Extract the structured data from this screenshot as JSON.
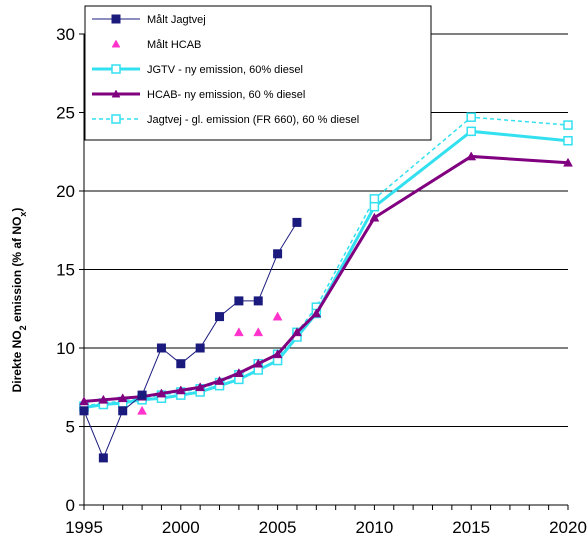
{
  "chart_data": {
    "type": "line",
    "title": "",
    "xlabel": "",
    "ylabel": {
      "prefix": "Direkte NO",
      "sub": "2",
      "middle": " emission  (% af NO",
      "sub2": "x",
      "suffix": ")"
    },
    "xlim": [
      1995,
      2020
    ],
    "ylim": [
      0,
      30
    ],
    "xticks": [
      "1995",
      "2000",
      "2005",
      "2010",
      "2015",
      "2020"
    ],
    "yticks": [
      "0",
      "5",
      "10",
      "15",
      "20",
      "25",
      "30"
    ],
    "grid": "horizontal",
    "legend_position": "top-left",
    "series": [
      {
        "name": "Målt Jagtvej",
        "color": "#1b1b7e",
        "marker": "square-filled",
        "line": "solid-thin",
        "x": [
          1995,
          1996,
          1997,
          1998,
          1999,
          2000,
          2001,
          2002,
          2003,
          2004,
          2005,
          2006
        ],
        "y": [
          6,
          3,
          6,
          7,
          10,
          9,
          10,
          12,
          13,
          13,
          16,
          18
        ]
      },
      {
        "name": "Målt HCAB",
        "color": "#ff33cc",
        "marker": "triangle-filled",
        "line": "none",
        "x": [
          1998,
          2003,
          2004,
          2005
        ],
        "y": [
          6,
          11,
          11,
          12
        ]
      },
      {
        "name": "JGTV - ny emission, 60% diesel",
        "color": "#33e0f0",
        "marker": "square-open",
        "line": "solid-thick",
        "x": [
          1995,
          1996,
          1997,
          1998,
          1999,
          2000,
          2001,
          2002,
          2003,
          2004,
          2005,
          2006,
          2007,
          2010,
          2015,
          2020
        ],
        "y": [
          6.2,
          6.4,
          6.5,
          6.7,
          6.8,
          7.0,
          7.2,
          7.6,
          8.0,
          8.6,
          9.2,
          10.7,
          12.2,
          19.0,
          23.8,
          23.2
        ]
      },
      {
        "name": "HCAB- ny emission, 60 % diesel",
        "color": "#800080",
        "marker": "triangle-filled",
        "line": "solid-thick",
        "x": [
          1995,
          1996,
          1997,
          1998,
          1999,
          2000,
          2001,
          2002,
          2003,
          2004,
          2005,
          2006,
          2007,
          2010,
          2015,
          2020
        ],
        "y": [
          6.6,
          6.7,
          6.8,
          6.9,
          7.1,
          7.3,
          7.5,
          7.9,
          8.4,
          9.0,
          9.6,
          11.0,
          12.2,
          18.3,
          22.2,
          21.8
        ]
      },
      {
        "name": "Jagtvej - gl. emission (FR 660), 60 % diesel",
        "color": "#33e0f0",
        "marker": "square-open",
        "line": "dashed",
        "x": [
          1995,
          1996,
          1997,
          1998,
          1999,
          2000,
          2001,
          2002,
          2003,
          2004,
          2005,
          2006,
          2007,
          2010,
          2015,
          2020
        ],
        "y": [
          6.3,
          6.5,
          6.6,
          6.8,
          7.0,
          7.2,
          7.4,
          7.8,
          8.3,
          9.0,
          9.6,
          11.0,
          12.6,
          19.5,
          24.7,
          24.2
        ]
      }
    ]
  }
}
